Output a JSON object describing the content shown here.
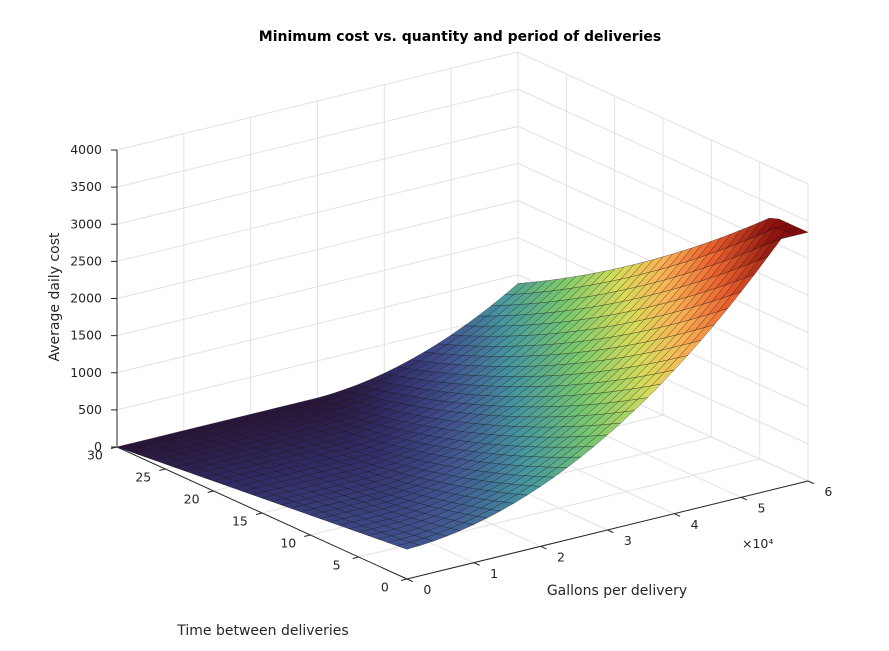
{
  "chart_data": {
    "type": "surface",
    "title": "Minimum cost vs. quantity and period of deliveries",
    "xlabel": "Gallons per delivery",
    "ylabel": "Time between deliveries",
    "zlabel": "Average daily cost",
    "x_multiplier_label": "×10⁴",
    "xlim": [
      0,
      60000
    ],
    "ylim": [
      0,
      30
    ],
    "zlim": [
      0,
      4000
    ],
    "x_ticks": [
      0,
      1,
      2,
      3,
      4,
      5,
      6
    ],
    "y_ticks": [
      0,
      5,
      10,
      15,
      20,
      25,
      30
    ],
    "z_ticks": [
      0,
      500,
      1000,
      1500,
      2000,
      2500,
      3000,
      3500,
      4000
    ],
    "grid": "on",
    "colormap": "jet",
    "surface_corner_values": [
      {
        "x": 0,
        "y": 0,
        "z": 400
      },
      {
        "x": 0,
        "y": 30,
        "z": 0
      },
      {
        "x": 60000,
        "y": 30,
        "z": 0
      },
      {
        "x": 60000,
        "y": 0,
        "z": 3300
      }
    ]
  }
}
